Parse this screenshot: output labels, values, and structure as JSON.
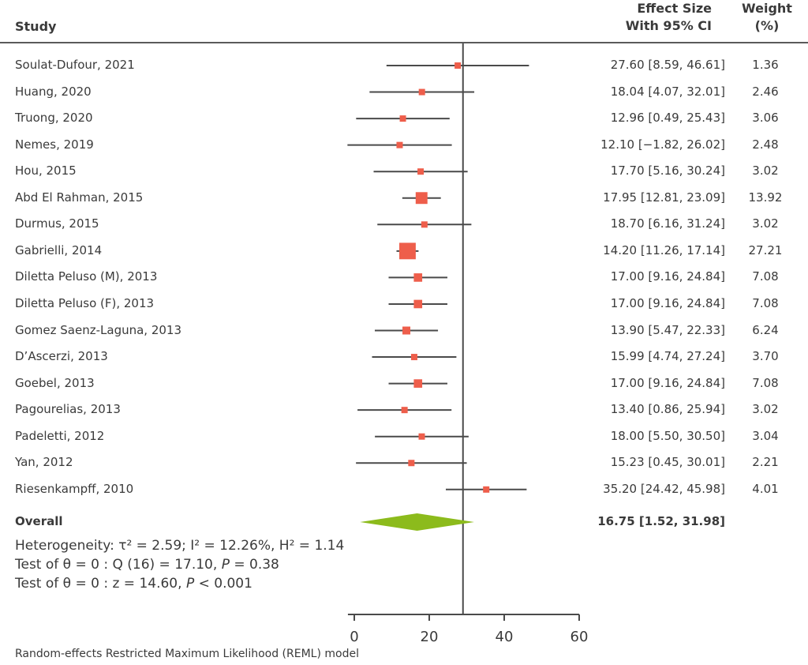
{
  "chart_data": {
    "type": "forest",
    "title": "",
    "xlabel": "",
    "columns": {
      "study": "Study",
      "effect": [
        "Effect Size",
        "With 95% CI"
      ],
      "weight": [
        "Weight",
        "(%)"
      ]
    },
    "xlim": [
      -1.7,
      60
    ],
    "xticks": [
      0,
      20,
      40,
      60
    ],
    "reference_line": 29,
    "studies": [
      {
        "name": "Soulat-Dufour, 2021",
        "es": 27.6,
        "lo": 8.59,
        "hi": 46.61,
        "weight": 1.36,
        "es_text": "27.60 [8.59, 46.61]",
        "weight_text": "1.36"
      },
      {
        "name": "Huang, 2020",
        "es": 18.04,
        "lo": 4.07,
        "hi": 32.01,
        "weight": 2.46,
        "es_text": "18.04 [4.07, 32.01]",
        "weight_text": "2.46"
      },
      {
        "name": "Truong, 2020",
        "es": 12.96,
        "lo": 0.49,
        "hi": 25.43,
        "weight": 3.06,
        "es_text": "12.96 [0.49, 25.43]",
        "weight_text": "3.06"
      },
      {
        "name": "Nemes, 2019",
        "es": 12.1,
        "lo": -1.82,
        "hi": 26.02,
        "weight": 2.48,
        "es_text": "12.10 [−1.82, 26.02]",
        "weight_text": "2.48"
      },
      {
        "name": "Hou, 2015",
        "es": 17.7,
        "lo": 5.16,
        "hi": 30.24,
        "weight": 3.02,
        "es_text": "17.70 [5.16, 30.24]",
        "weight_text": "3.02"
      },
      {
        "name": "Abd El Rahman, 2015",
        "es": 17.95,
        "lo": 12.81,
        "hi": 23.09,
        "weight": 13.92,
        "es_text": "17.95 [12.81, 23.09]",
        "weight_text": "13.92"
      },
      {
        "name": "Durmus, 2015",
        "es": 18.7,
        "lo": 6.16,
        "hi": 31.24,
        "weight": 3.02,
        "es_text": "18.70 [6.16, 31.24]",
        "weight_text": "3.02"
      },
      {
        "name": "Gabrielli, 2014",
        "es": 14.2,
        "lo": 11.26,
        "hi": 17.14,
        "weight": 27.21,
        "es_text": "14.20 [11.26, 17.14]",
        "weight_text": "27.21"
      },
      {
        "name": "Diletta Peluso (M), 2013",
        "es": 17.0,
        "lo": 9.16,
        "hi": 24.84,
        "weight": 7.08,
        "es_text": "17.00 [9.16, 24.84]",
        "weight_text": "7.08"
      },
      {
        "name": "Diletta Peluso (F), 2013",
        "es": 17.0,
        "lo": 9.16,
        "hi": 24.84,
        "weight": 7.08,
        "es_text": "17.00 [9.16, 24.84]",
        "weight_text": "7.08"
      },
      {
        "name": "Gomez Saenz-Laguna, 2013",
        "es": 13.9,
        "lo": 5.47,
        "hi": 22.33,
        "weight": 6.24,
        "es_text": "13.90 [5.47, 22.33]",
        "weight_text": "6.24"
      },
      {
        "name": "D’Ascerzi, 2013",
        "es": 15.99,
        "lo": 4.74,
        "hi": 27.24,
        "weight": 3.7,
        "es_text": "15.99 [4.74, 27.24]",
        "weight_text": "3.70"
      },
      {
        "name": "Goebel, 2013",
        "es": 17.0,
        "lo": 9.16,
        "hi": 24.84,
        "weight": 7.08,
        "es_text": "17.00 [9.16, 24.84]",
        "weight_text": "7.08"
      },
      {
        "name": "Pagourelias, 2013",
        "es": 13.4,
        "lo": 0.86,
        "hi": 25.94,
        "weight": 3.02,
        "es_text": "13.40 [0.86, 25.94]",
        "weight_text": "3.02"
      },
      {
        "name": "Padeletti, 2012",
        "es": 18.0,
        "lo": 5.5,
        "hi": 30.5,
        "weight": 3.04,
        "es_text": "18.00 [5.50, 30.50]",
        "weight_text": "3.04"
      },
      {
        "name": "Yan, 2012",
        "es": 15.23,
        "lo": 0.45,
        "hi": 30.01,
        "weight": 2.21,
        "es_text": "15.23 [0.45, 30.01]",
        "weight_text": "2.21"
      },
      {
        "name": "Riesenkampff, 2010",
        "es": 35.2,
        "lo": 24.42,
        "hi": 45.98,
        "weight": 4.01,
        "es_text": "35.20 [24.42, 45.98]",
        "weight_text": "4.01"
      }
    ],
    "overall": {
      "name": "Overall",
      "es": 16.75,
      "lo": 1.52,
      "hi": 31.98,
      "es_text": "16.75 [1.52, 31.98]"
    },
    "stats": {
      "heterogeneity": "Heterogeneity: τ² = 2.59; I² = 12.26%, H² = 1.14",
      "test_q_prefix": "Test of θ = 0 : Q (16) = 17.10, ",
      "test_q_p": "P",
      "test_q_suffix": " = 0.38",
      "test_z_prefix": "Test of θ = 0 : z = 14.60, ",
      "test_z_p": "P",
      "test_z_suffix": " < 0.001"
    },
    "footnote": "Random-effects Restricted Maximum Likelihood (REML) model",
    "colors": {
      "marker": "#ee5e4b",
      "diamond": "#8cbb1c",
      "line": "#4a4a4a",
      "text": "#3a3a3a"
    }
  }
}
